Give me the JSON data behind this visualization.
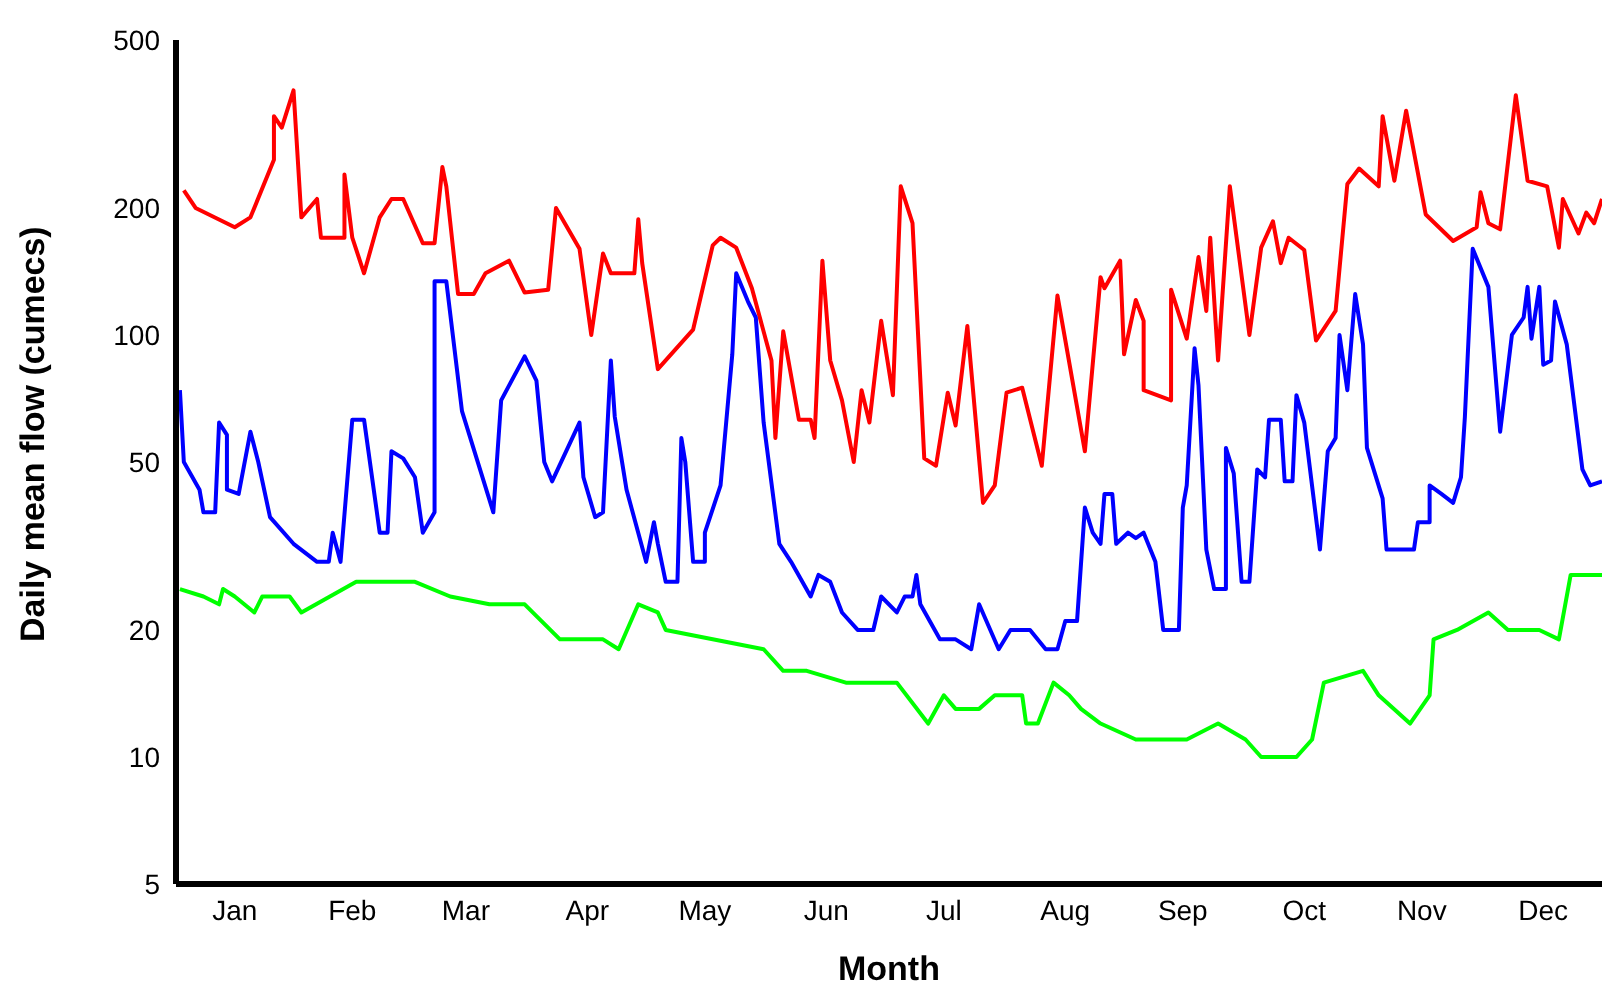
{
  "chart_data": {
    "type": "line",
    "xlabel": "Month",
    "ylabel": "Daily mean flow (cumecs)",
    "log": "y",
    "grid": false,
    "legend": false,
    "marker": "none",
    "line_style": "solid",
    "xlim": [
      "--01-01",
      "--12-31"
    ],
    "xticks": [
      {
        "value": "--01-16",
        "label": "Jan"
      },
      {
        "value": "--02-15",
        "label": "Feb"
      },
      {
        "value": "--03-16",
        "label": "Mar"
      },
      {
        "value": "--04-16",
        "label": "Apr"
      },
      {
        "value": "--05-16",
        "label": "May"
      },
      {
        "value": "--06-16",
        "label": "Jun"
      },
      {
        "value": "--07-16",
        "label": "Jul"
      },
      {
        "value": "--08-16",
        "label": "Aug"
      },
      {
        "value": "--09-15",
        "label": "Sep"
      },
      {
        "value": "--10-16",
        "label": "Oct"
      },
      {
        "value": "--11-15",
        "label": "Nov"
      },
      {
        "value": "--12-16",
        "label": "Dec"
      }
    ],
    "ylim": [
      5,
      500
    ],
    "yticks": [
      5,
      10,
      20,
      50,
      100,
      200,
      500
    ],
    "series": [
      {
        "color": "#ff0000",
        "x": [
          "--01-03",
          "--01-06",
          "--01-16",
          "--01-20",
          "--01-26",
          "--01-26",
          "--01-28",
          "--01-31",
          "--02-02",
          "--02-06",
          "--02-07",
          "--02-13",
          "--02-13",
          "--02-15",
          "--02-18",
          "--02-22",
          "--02-25",
          "--02-28",
          "--03-05",
          "--03-08",
          "--03-10",
          "--03-11",
          "--03-14",
          "--03-18",
          "--03-21",
          "--03-27",
          "--03-31",
          "--04-06",
          "--04-08",
          "--04-14",
          "--04-17",
          "--04-20",
          "--04-22",
          "--04-28",
          "--04-29",
          "--04-30",
          "--05-04",
          "--05-13",
          "--05-18",
          "--05-20",
          "--05-24",
          "--05-28",
          "--06-02",
          "--06-03",
          "--06-05",
          "--06-09",
          "--06-12",
          "--06-13",
          "--06-15",
          "--06-17",
          "--06-20",
          "--06-23",
          "--06-25",
          "--06-27",
          "--06-30",
          "--07-03",
          "--07-05",
          "--07-08",
          "--07-11",
          "--07-14",
          "--07-17",
          "--07-19",
          "--07-22",
          "--07-26",
          "--07-29",
          "--08-01",
          "--08-05",
          "--08-10",
          "--08-14",
          "--08-21",
          "--08-25",
          "--08-26",
          "--08-30",
          "--08-31",
          "--09-03",
          "--09-05",
          "--09-05",
          "--09-12",
          "--09-12",
          "--09-16",
          "--09-19",
          "--09-21",
          "--09-22",
          "--09-24",
          "--09-27",
          "--10-02",
          "--10-05",
          "--10-08",
          "--10-10",
          "--10-12",
          "--10-16",
          "--10-19",
          "--10-24",
          "--10-27",
          "--10-30",
          "--11-04",
          "--11-05",
          "--11-08",
          "--11-11",
          "--11-16",
          "--11-23",
          "--11-29",
          "--11-30",
          "--12-02",
          "--12-05",
          "--12-09",
          "--12-12",
          "--12-17",
          "--12-20",
          "--12-21",
          "--12-25",
          "--12-27",
          "--12-29",
          "--12-31"
        ],
        "values": [
          220,
          200,
          180,
          190,
          260,
          330,
          310,
          380,
          190,
          210,
          170,
          170,
          240,
          170,
          140,
          190,
          210,
          210,
          165,
          165,
          250,
          225,
          125,
          125,
          140,
          150,
          126,
          128,
          200,
          160,
          100,
          156,
          140,
          140,
          188,
          148,
          83,
          103,
          163,
          170,
          161,
          129,
          87,
          57,
          102,
          63,
          63,
          57,
          150,
          87,
          70,
          50,
          74,
          62,
          108,
          72,
          225,
          184,
          51,
          49,
          73,
          61,
          105,
          40,
          44,
          73,
          75,
          49,
          124,
          53,
          137,
          129,
          150,
          90,
          121,
          108,
          74,
          70,
          128,
          98,
          153,
          114,
          170,
          87,
          225,
          100,
          161,
          186,
          148,
          170,
          159,
          97,
          114,
          228,
          248,
          225,
          330,
          232,
          340,
          193,
          167,
          180,
          218,
          184,
          178,
          370,
          232,
          225,
          161,
          210,
          174,
          195,
          184,
          210
        ]
      },
      {
        "color": "#0000ff",
        "x": [
          "--01-02",
          "--01-03",
          "--01-07",
          "--01-08",
          "--01-11",
          "--01-12",
          "--01-14",
          "--01-14",
          "--01-17",
          "--01-20",
          "--01-22",
          "--01-25",
          "--01-31",
          "--02-06",
          "--02-09",
          "--02-10",
          "--02-12",
          "--02-15",
          "--02-18",
          "--02-22",
          "--02-24",
          "--02-25",
          "--02-28",
          "--03-03",
          "--03-05",
          "--03-08",
          "--03-08",
          "--03-11",
          "--03-15",
          "--03-23",
          "--03-25",
          "--03-31",
          "--04-03",
          "--04-05",
          "--04-07",
          "--04-14",
          "--04-15",
          "--04-18",
          "--04-20",
          "--04-22",
          "--04-23",
          "--04-26",
          "--05-01",
          "--05-03",
          "--05-04",
          "--05-06",
          "--05-09",
          "--05-10",
          "--05-11",
          "--05-13",
          "--05-16",
          "--05-16",
          "--05-20",
          "--05-23",
          "--05-24",
          "--05-27",
          "--05-29",
          "--05-31",
          "--06-04",
          "--06-07",
          "--06-12",
          "--06-14",
          "--06-17",
          "--06-20",
          "--06-24",
          "--06-28",
          "--06-30",
          "--07-04",
          "--07-06",
          "--07-08",
          "--07-09",
          "--07-10",
          "--07-15",
          "--07-19",
          "--07-23",
          "--07-25",
          "--07-30",
          "--08-02",
          "--08-07",
          "--08-11",
          "--08-14",
          "--08-16",
          "--08-19",
          "--08-21",
          "--08-23",
          "--08-25",
          "--08-26",
          "--08-28",
          "--08-29",
          "--09-01",
          "--09-03",
          "--09-05",
          "--09-08",
          "--09-10",
          "--09-14",
          "--09-15",
          "--09-16",
          "--09-18",
          "--09-19",
          "--09-21",
          "--09-23",
          "--09-26",
          "--09-26",
          "--09-28",
          "--09-30",
          "--10-02",
          "--10-04",
          "--10-06",
          "--10-07",
          "--10-10",
          "--10-11",
          "--10-13",
          "--10-14",
          "--10-16",
          "--10-20",
          "--10-22",
          "--10-24",
          "--10-25",
          "--10-27",
          "--10-29",
          "--10-31",
          "--11-01",
          "--11-05",
          "--11-06",
          "--11-13",
          "--11-14",
          "--11-17",
          "--11-17",
          "--11-20",
          "--11-23",
          "--11-25",
          "--11-26",
          "--11-28",
          "--12-02",
          "--12-05",
          "--12-08",
          "--12-11",
          "--12-12",
          "--12-13",
          "--12-15",
          "--12-16",
          "--12-18",
          "--12-19",
          "--12-22",
          "--12-26",
          "--12-28",
          "--12-31"
        ],
        "values": [
          74,
          50,
          43,
          38,
          38,
          62,
          58,
          43,
          42,
          59,
          50,
          37,
          32,
          29,
          29,
          34,
          29,
          63,
          63,
          34,
          34,
          53,
          51,
          46,
          34,
          38,
          134,
          134,
          66,
          38,
          70,
          89,
          78,
          50,
          45,
          62,
          46,
          37,
          38,
          87,
          64,
          43,
          29,
          36,
          32,
          26,
          26,
          57,
          50,
          29,
          29,
          34,
          44,
          90,
          140,
          120,
          110,
          62,
          32,
          29,
          24,
          27,
          26,
          22,
          20,
          20,
          24,
          22,
          24,
          24,
          27,
          23,
          19,
          19,
          18,
          23,
          18,
          20,
          20,
          18,
          18,
          21,
          21,
          39,
          34,
          32,
          42,
          42,
          32,
          34,
          33,
          34,
          29,
          20,
          20,
          39,
          44,
          93,
          76,
          31,
          25,
          25,
          54,
          47,
          26,
          26,
          48,
          46,
          63,
          63,
          45,
          45,
          72,
          62,
          31,
          53,
          57,
          100,
          74,
          125,
          95,
          54,
          41,
          31,
          31,
          36,
          36,
          44,
          42,
          40,
          46,
          64,
          160,
          130,
          59,
          100,
          110,
          130,
          98,
          130,
          85,
          87,
          120,
          95,
          48,
          44,
          45
        ]
      },
      {
        "color": "#00ff00",
        "x": [
          "--01-02",
          "--01-08",
          "--01-12",
          "--01-13",
          "--01-16",
          "--01-21",
          "--01-23",
          "--01-30",
          "--02-02",
          "--02-16",
          "--03-03",
          "--03-12",
          "--03-22",
          "--03-31",
          "--04-09",
          "--04-20",
          "--04-24",
          "--04-29",
          "--05-04",
          "--05-06",
          "--05-18",
          "--05-31",
          "--06-05",
          "--06-11",
          "--06-21",
          "--06-27",
          "--07-04",
          "--07-12",
          "--07-16",
          "--07-19",
          "--07-25",
          "--07-29",
          "--08-05",
          "--08-06",
          "--08-09",
          "--08-13",
          "--08-17",
          "--08-20",
          "--08-25",
          "--09-03",
          "--09-04",
          "--09-16",
          "--09-24",
          "--10-01",
          "--10-05",
          "--10-14",
          "--10-18",
          "--10-21",
          "--10-31",
          "--11-04",
          "--11-12",
          "--11-17",
          "--11-18",
          "--11-24",
          "--12-02",
          "--12-07",
          "--12-15",
          "--12-20",
          "--12-23",
          "--12-31"
        ],
        "values": [
          25,
          24,
          23,
          25,
          24,
          22,
          24,
          24,
          22,
          26,
          26,
          24,
          23,
          23,
          19,
          19,
          18,
          23,
          22,
          20,
          19,
          18,
          16,
          16,
          15,
          15,
          15,
          12,
          14,
          13,
          13,
          14,
          14,
          12,
          12,
          15,
          14,
          13,
          12,
          11,
          11,
          11,
          12,
          11,
          10,
          10,
          11,
          15,
          16,
          14,
          12,
          14,
          19,
          20,
          22,
          20,
          20,
          19,
          27,
          27
        ]
      }
    ]
  }
}
